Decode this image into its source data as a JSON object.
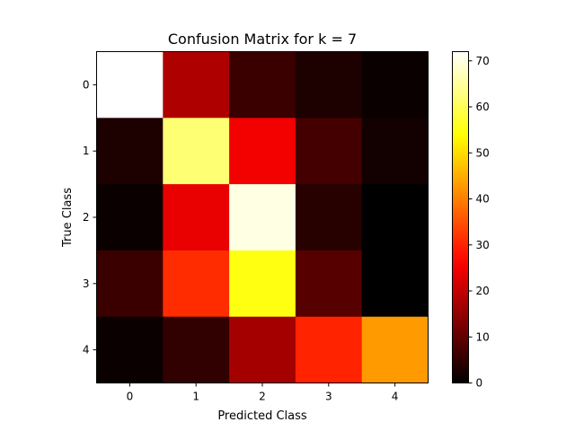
{
  "chart_data": {
    "type": "heatmap",
    "title": "Confusion Matrix for k = 7",
    "xlabel": "Predicted Class",
    "ylabel": "True Class",
    "x_categories": [
      "0",
      "1",
      "2",
      "3",
      "4"
    ],
    "y_categories": [
      "0",
      "1",
      "2",
      "3",
      "4"
    ],
    "values": [
      [
        72,
        18,
        6,
        3,
        1
      ],
      [
        3,
        62,
        25,
        7,
        2
      ],
      [
        1,
        24,
        70,
        4,
        0
      ],
      [
        6,
        31,
        55,
        9,
        0
      ],
      [
        1,
        5,
        17,
        30,
        43
      ]
    ],
    "colormap": "hot",
    "colorbar": {
      "range": [
        0,
        72
      ],
      "ticks": [
        "0",
        "10",
        "20",
        "30",
        "40",
        "50",
        "60",
        "70"
      ]
    },
    "grid": false
  }
}
